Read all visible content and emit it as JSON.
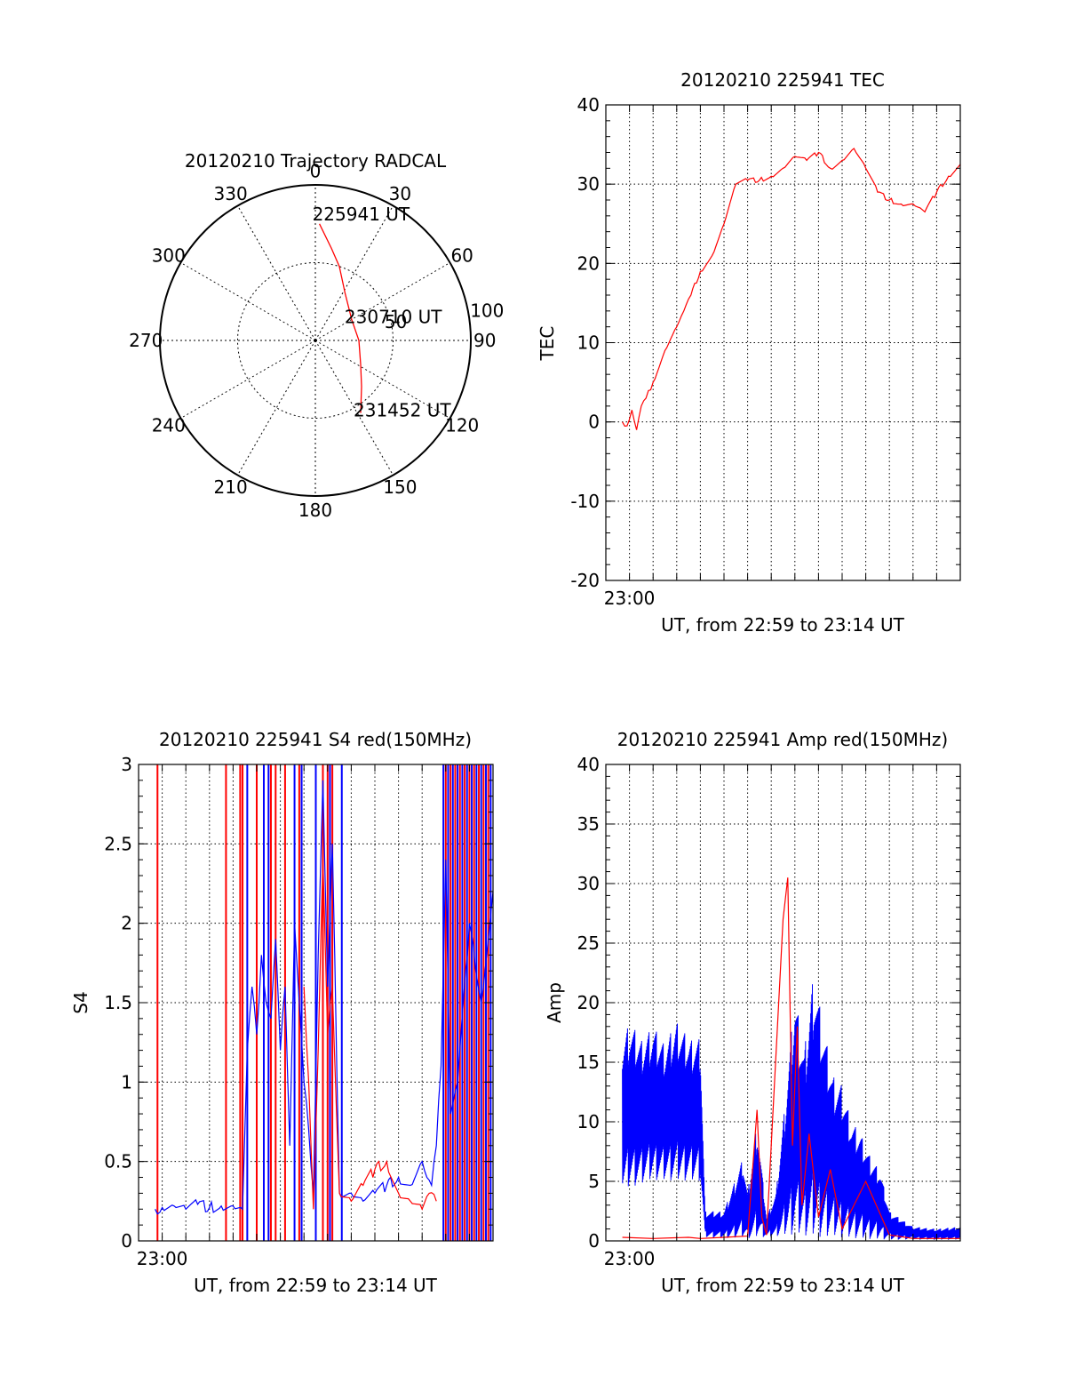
{
  "chart_data": [
    {
      "type": "polar",
      "title": "20120210 Trajectory RADCAL",
      "angle_labels": [
        "0",
        "30",
        "60",
        "90",
        "120",
        "150",
        "180",
        "210",
        "240",
        "270",
        "300",
        "330"
      ],
      "radial_labels": [
        "50",
        "100"
      ],
      "rlim": [
        0,
        100
      ],
      "grid": true,
      "series": [
        {
          "color": "#ff0000",
          "points": [
            [
              2,
              75
            ],
            [
              10,
              60
            ],
            [
              18,
              50
            ],
            [
              32,
              36
            ],
            [
              60,
              27
            ],
            [
              90,
              28
            ],
            [
              118,
              33
            ],
            [
              135,
              42
            ],
            [
              148,
              55
            ]
          ]
        }
      ],
      "annotations": [
        {
          "text": "225941 UT"
        },
        {
          "text": "230710 UT"
        },
        {
          "text": "231452 UT"
        }
      ]
    },
    {
      "type": "line",
      "title": "20120210 225941 TEC",
      "xlabel": "UT, from 22:59 to 23:14 UT",
      "ylabel": "TEC",
      "xlim": [
        0,
        15
      ],
      "ylim": [
        -20,
        40
      ],
      "yticks": [
        -20,
        -10,
        0,
        10,
        20,
        30,
        40
      ],
      "xtick_labels": [
        {
          "x": 1,
          "label": "23:00"
        }
      ],
      "grid": true,
      "series": [
        {
          "color": "#ff0000",
          "x": [
            0.7,
            0.9,
            1.1,
            1.3,
            1.5,
            1.7,
            2.0,
            2.5,
            3.0,
            3.3,
            3.6,
            4.0,
            4.5,
            5.0,
            5.5,
            6.0,
            6.5,
            7.0,
            7.5,
            8.0,
            8.5,
            9.0,
            9.5,
            10.0,
            10.5,
            11.0,
            11.5,
            12.0,
            12.5,
            13.0,
            13.3,
            13.5,
            14.0,
            14.5,
            15.0
          ],
          "y": [
            0,
            -0.5,
            1.5,
            -1,
            2,
            3,
            5,
            9,
            12,
            14,
            16,
            19,
            21,
            25,
            30,
            30.5,
            30.5,
            31,
            32,
            33.5,
            33,
            34,
            32,
            33,
            34.5,
            32,
            29,
            28,
            27.5,
            27.5,
            27,
            26.5,
            29,
            31,
            32.5
          ]
        }
      ]
    },
    {
      "type": "line",
      "title": "20120210 225941 S4 red(150MHz)",
      "xlabel": "UT, from 22:59 to 23:14 UT",
      "ylabel": "S4",
      "xlim": [
        0,
        15
      ],
      "ylim": [
        0,
        3
      ],
      "yticks": [
        0,
        0.5,
        1,
        1.5,
        2,
        2.5,
        3
      ],
      "ytick_labels": [
        "0",
        "0.5",
        "1",
        "1.5",
        "2",
        "2.5",
        "3"
      ],
      "xtick_labels": [
        {
          "x": 1,
          "label": "23:00"
        }
      ],
      "grid": true,
      "series": [
        {
          "color": "#0000ff",
          "x": [
            0.7,
            1.0,
            1.5,
            2.0,
            2.5,
            3.0,
            3.5,
            4.0,
            4.4,
            4.6,
            4.8,
            5.0,
            5.2,
            5.4,
            5.6,
            5.8,
            6.0,
            6.2,
            6.4,
            6.6,
            6.8,
            7.0,
            7.2,
            7.4,
            7.6,
            7.8,
            8.0,
            8.2,
            8.5,
            9.0,
            9.5,
            10.0,
            10.5,
            11.0,
            11.5,
            12.0,
            12.2,
            12.4,
            12.6,
            12.8,
            13.0,
            13.2,
            13.5,
            14.0,
            14.5,
            15.0
          ],
          "y": [
            0.2,
            0.21,
            0.22,
            0.2,
            0.23,
            0.21,
            0.22,
            0.22,
            0.2,
            1.2,
            1.6,
            1.3,
            1.8,
            1.5,
            1.4,
            1.9,
            1.2,
            1.6,
            0.6,
            2.0,
            1.5,
            1.0,
            0.7,
            0.3,
            1.8,
            2.9,
            1.6,
            2.5,
            0.3,
            0.3,
            0.25,
            0.3,
            0.35,
            0.4,
            0.35,
            0.5,
            0.4,
            0.35,
            0.6,
            1.1,
            2.4,
            0.8,
            1.0,
            2.0,
            1.5,
            2.2
          ]
        },
        {
          "color": "#ff0000",
          "x": [
            7.0,
            7.2,
            7.4,
            7.6,
            7.8,
            8.0,
            8.2,
            8.5,
            9.0,
            9.5,
            10.0,
            10.5,
            11.0,
            11.5,
            12.0,
            12.3,
            12.6
          ],
          "y": [
            1.6,
            1.0,
            0.2,
            1.2,
            2.4,
            1.3,
            1.6,
            0.3,
            0.25,
            0.35,
            0.45,
            0.5,
            0.3,
            0.25,
            0.2,
            0.3,
            0.25
          ]
        }
      ],
      "spikes": [
        {
          "color": "#ff0000",
          "x": [
            0.8,
            3.7,
            4.3,
            4.4,
            5.0,
            5.6,
            5.8,
            6.2,
            6.8,
            7.8,
            8.0,
            8.2,
            13.0,
            13.2,
            13.4,
            13.6,
            13.8,
            14.0,
            14.2,
            14.4,
            14.6,
            14.8
          ]
        },
        {
          "color": "#0000ff",
          "x": [
            4.6,
            5.3,
            5.5,
            6.6,
            6.9,
            7.5,
            8.1,
            8.6,
            12.9,
            13.1,
            13.3,
            13.5,
            13.7,
            13.9,
            14.1,
            14.3,
            14.5,
            14.7,
            14.9
          ]
        }
      ]
    },
    {
      "type": "line",
      "title": "20120210 225941 Amp red(150MHz)",
      "xlabel": "UT, from 22:59 to 23:14 UT",
      "ylabel": "Amp",
      "xlim": [
        0,
        15
      ],
      "ylim": [
        0,
        40
      ],
      "yticks": [
        0,
        5,
        10,
        15,
        20,
        25,
        30,
        35,
        40
      ],
      "xtick_labels": [
        {
          "x": 1,
          "label": "23:00"
        }
      ],
      "grid": true,
      "series": [
        {
          "color": "#ff0000",
          "x": [
            0.7,
            2.0,
            3.5,
            4.0,
            5.0,
            6.0,
            6.4,
            6.6,
            6.8,
            7.5,
            7.7,
            7.9,
            8.1,
            8.3,
            8.6,
            9.0,
            9.5,
            10.0,
            11.0,
            12.0,
            13.0,
            15.0
          ],
          "y": [
            0.3,
            0.2,
            0.3,
            0.2,
            0.3,
            0.4,
            11,
            2,
            0.5,
            27,
            30.5,
            8,
            18,
            3,
            9,
            2,
            6,
            1,
            5,
            0.5,
            0.2,
            0.2
          ]
        },
        {
          "color": "#0000ff",
          "upper": [
            [
              0.7,
              17
            ],
            [
              1.0,
              18.5
            ],
            [
              1.5,
              17
            ],
            [
              2.0,
              18
            ],
            [
              2.5,
              16.5
            ],
            [
              3.0,
              18.5
            ],
            [
              3.5,
              17
            ],
            [
              4.0,
              17
            ],
            [
              4.2,
              2.5
            ],
            [
              5.0,
              2.5
            ],
            [
              5.8,
              7
            ],
            [
              6.0,
              4
            ],
            [
              6.4,
              10
            ],
            [
              6.8,
              2
            ],
            [
              7.2,
              4
            ],
            [
              7.6,
              12
            ],
            [
              8.0,
              21
            ],
            [
              8.4,
              16
            ],
            [
              8.8,
              23
            ],
            [
              9.2,
              18
            ],
            [
              9.6,
              14
            ],
            [
              10.0,
              13
            ],
            [
              10.4,
              10
            ],
            [
              10.8,
              9
            ],
            [
              11.2,
              7
            ],
            [
              11.6,
              6
            ],
            [
              12.0,
              2.5
            ],
            [
              13.0,
              1.2
            ],
            [
              14.0,
              1.0
            ],
            [
              15.0,
              1.2
            ]
          ],
          "lower": [
            [
              0.7,
              4
            ],
            [
              1.0,
              4.5
            ],
            [
              2.0,
              5
            ],
            [
              3.0,
              5
            ],
            [
              4.0,
              5
            ],
            [
              4.2,
              0.3
            ],
            [
              6.0,
              0.2
            ],
            [
              8.0,
              0.5
            ],
            [
              10.0,
              0.2
            ],
            [
              12.0,
              0.1
            ],
            [
              15.0,
              0.1
            ]
          ]
        }
      ]
    }
  ]
}
